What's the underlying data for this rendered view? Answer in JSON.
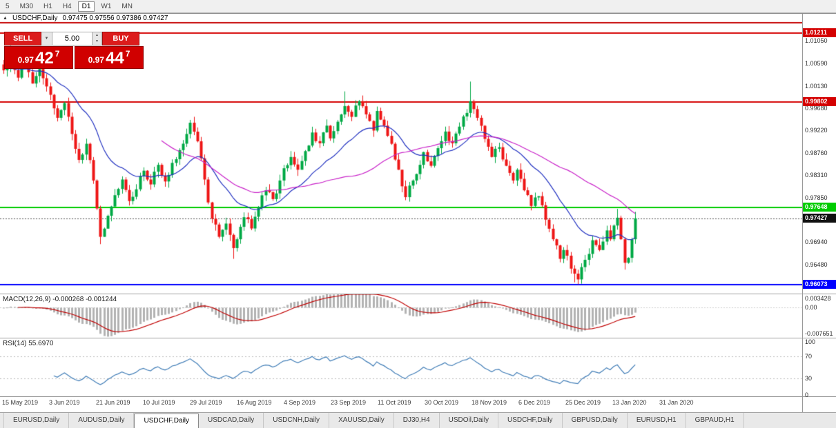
{
  "toolbar": {
    "timeframes": [
      {
        "label": "5",
        "active": false
      },
      {
        "label": "M30",
        "active": false
      },
      {
        "label": "H1",
        "active": false
      },
      {
        "label": "H4",
        "active": false
      },
      {
        "label": "D1",
        "active": true
      },
      {
        "label": "W1",
        "active": false
      },
      {
        "label": "MN",
        "active": false
      }
    ]
  },
  "chart": {
    "title": "USDCHF,Daily",
    "ohlc_line": "0.97475 0.97556 0.97386 0.97427",
    "trade_panel": {
      "sell_label": "SELL",
      "buy_label": "BUY",
      "volume": "5.00",
      "bid": {
        "prefix": "0.97",
        "big": "42",
        "sup": "7"
      },
      "ask": {
        "prefix": "0.97",
        "big": "44",
        "sup": "7"
      }
    },
    "price_axis": {
      "ticks": [
        "1.01050",
        "1.00590",
        "1.00130",
        "0.99680",
        "0.99220",
        "0.98760",
        "0.98310",
        "0.97850",
        "0.96940",
        "0.96480"
      ],
      "levels": [
        {
          "label": "",
          "price": 1.0142,
          "color": "#c40000"
        },
        {
          "label": "1.01211",
          "price": 1.01211,
          "color": "#d40000"
        },
        {
          "label": "0.99802",
          "price": 0.99802,
          "color": "#d40000"
        },
        {
          "label": "0.97648",
          "price": 0.97648,
          "color": "#00cc00"
        },
        {
          "label": "0.96073",
          "price": 0.96073,
          "color": "#0000ff"
        }
      ],
      "current": {
        "label": "0.97427",
        "price": 0.97427,
        "bg": "#111111"
      }
    },
    "time_axis": {
      "labels": [
        "15 May 2019",
        "3 Jun 2019",
        "21 Jun 2019",
        "10 Jul 2019",
        "29 Jul 2019",
        "16 Aug 2019",
        "4 Sep 2019",
        "23 Sep 2019",
        "11 Oct 2019",
        "30 Oct 2019",
        "18 Nov 2019",
        "6 Dec 2019",
        "25 Dec 2019",
        "13 Jan 2020",
        "31 Jan 2020"
      ]
    }
  },
  "indicators": {
    "macd": {
      "label": "MACD(12,26,9) -0.000268 -0.001244",
      "axis": [
        "0.003428",
        "0.00",
        "-0.007651"
      ],
      "range": [
        -0.007651,
        0.003428
      ]
    },
    "rsi": {
      "label": "RSI(14) 55.6970",
      "axis": [
        "100",
        "70",
        "30",
        "0"
      ],
      "levels": [
        70,
        30
      ]
    }
  },
  "tabs": [
    {
      "label": "EURUSD,Daily",
      "active": false
    },
    {
      "label": "AUDUSD,Daily",
      "active": false
    },
    {
      "label": "USDCHF,Daily",
      "active": true
    },
    {
      "label": "USDCAD,Daily",
      "active": false
    },
    {
      "label": "USDCNH,Daily",
      "active": false
    },
    {
      "label": "XAUUSD,Daily",
      "active": false
    },
    {
      "label": "DJ30,H4",
      "active": false
    },
    {
      "label": "USDOil,Daily",
      "active": false
    },
    {
      "label": "USDCHF,Daily",
      "active": false
    },
    {
      "label": "GBPUSD,Daily",
      "active": false
    },
    {
      "label": "EURUSD,H1",
      "active": false
    },
    {
      "label": "GBPAUD,H1",
      "active": false
    }
  ],
  "chart_data": {
    "type": "candlestick",
    "symbol": "USDCHF",
    "timeframe": "Daily",
    "x_axis_labels": [
      "15 May 2019",
      "3 Jun 2019",
      "21 Jun 2019",
      "10 Jul 2019",
      "29 Jul 2019",
      "16 Aug 2019",
      "4 Sep 2019",
      "23 Sep 2019",
      "11 Oct 2019",
      "30 Oct 2019",
      "18 Nov 2019",
      "6 Dec 2019",
      "25 Dec 2019",
      "13 Jan 2020",
      "31 Jan 2020"
    ],
    "visible_price_range": {
      "top": 1.0145,
      "bottom": 0.9589
    },
    "candle_count": 177,
    "candles_per_label": 13,
    "close_anchors": [
      [
        0,
        1.0045
      ],
      [
        2,
        1.0075
      ],
      [
        4,
        1.003
      ],
      [
        6,
        1.0058
      ],
      [
        8,
        1.0018
      ],
      [
        10,
        1.0048
      ],
      [
        13,
        0.9995
      ],
      [
        15,
        0.9948
      ],
      [
        17,
        0.9978
      ],
      [
        19,
        0.9915
      ],
      [
        21,
        0.9862
      ],
      [
        23,
        0.9895
      ],
      [
        25,
        0.982
      ],
      [
        27,
        0.9705
      ],
      [
        29,
        0.9748
      ],
      [
        31,
        0.979
      ],
      [
        33,
        0.9822
      ],
      [
        35,
        0.9778
      ],
      [
        37,
        0.9802
      ],
      [
        39,
        0.984
      ],
      [
        41,
        0.9812
      ],
      [
        43,
        0.9852
      ],
      [
        45,
        0.9818
      ],
      [
        47,
        0.9856
      ],
      [
        49,
        0.9882
      ],
      [
        51,
        0.9915
      ],
      [
        52,
        0.9938
      ],
      [
        54,
        0.99
      ],
      [
        56,
        0.9822
      ],
      [
        58,
        0.9742
      ],
      [
        60,
        0.9705
      ],
      [
        62,
        0.9732
      ],
      [
        64,
        0.9682
      ],
      [
        65,
        0.97
      ],
      [
        67,
        0.9745
      ],
      [
        69,
        0.9722
      ],
      [
        71,
        0.9766
      ],
      [
        73,
        0.98
      ],
      [
        75,
        0.9782
      ],
      [
        77,
        0.982
      ],
      [
        78,
        0.9845
      ],
      [
        80,
        0.9868
      ],
      [
        82,
        0.9842
      ],
      [
        84,
        0.988
      ],
      [
        86,
        0.9918
      ],
      [
        88,
        0.9896
      ],
      [
        90,
        0.9932
      ],
      [
        91,
        0.9906
      ],
      [
        93,
        0.994
      ],
      [
        95,
        0.9972
      ],
      [
        97,
        0.995
      ],
      [
        99,
        0.9982
      ],
      [
        101,
        0.9955
      ],
      [
        103,
        0.9922
      ],
      [
        104,
        0.9962
      ],
      [
        106,
        0.9932
      ],
      [
        108,
        0.9895
      ],
      [
        110,
        0.9842
      ],
      [
        112,
        0.9786
      ],
      [
        114,
        0.982
      ],
      [
        116,
        0.9852
      ],
      [
        117,
        0.9878
      ],
      [
        119,
        0.985
      ],
      [
        121,
        0.9886
      ],
      [
        123,
        0.992
      ],
      [
        125,
        0.9896
      ],
      [
        127,
        0.993
      ],
      [
        129,
        0.9958
      ],
      [
        130,
        0.9982
      ],
      [
        132,
        0.9948
      ],
      [
        134,
        0.9905
      ],
      [
        136,
        0.9868
      ],
      [
        138,
        0.9888
      ],
      [
        140,
        0.985
      ],
      [
        142,
        0.982
      ],
      [
        143,
        0.9842
      ],
      [
        145,
        0.98
      ],
      [
        147,
        0.9768
      ],
      [
        149,
        0.9788
      ],
      [
        151,
        0.974
      ],
      [
        153,
        0.97
      ],
      [
        155,
        0.966
      ],
      [
        156,
        0.9678
      ],
      [
        158,
        0.964
      ],
      [
        160,
        0.9618
      ],
      [
        162,
        0.9658
      ],
      [
        164,
        0.9698
      ],
      [
        166,
        0.9678
      ],
      [
        168,
        0.9718
      ],
      [
        169,
        0.97
      ],
      [
        170,
        0.9728
      ],
      [
        171,
        0.9744
      ],
      [
        172,
        0.97
      ],
      [
        173,
        0.9652
      ],
      [
        174,
        0.9662
      ],
      [
        175,
        0.97
      ],
      [
        176,
        0.97427
      ]
    ],
    "wick_overrides": {
      "high": {
        "2": 1.0095,
        "95": 1.0002,
        "130": 1.0022,
        "171": 0.9762,
        "176": 0.9756
      },
      "low": {
        "27": 0.969,
        "64": 0.966,
        "159": 0.9612,
        "160": 0.9608,
        "173": 0.9638
      }
    },
    "overlays": [
      {
        "name": "ma-fast",
        "type": "ema",
        "period": 20
      },
      {
        "name": "ma-slow",
        "type": "sma",
        "period": 45
      }
    ],
    "indicator_panes": [
      {
        "name": "macd",
        "params": [
          12,
          26,
          9
        ],
        "last_values": [
          -0.000268,
          -0.001244
        ],
        "scale": [
          -0.007651,
          0.003428
        ]
      },
      {
        "name": "rsi",
        "params": [
          14
        ],
        "last_value": 55.697,
        "scale": [
          0,
          100
        ],
        "level_lines": [
          70,
          30
        ]
      }
    ],
    "colors": {
      "up": "#00a845",
      "down": "#ee1515",
      "ma_fast": "#2030c0",
      "ma_slow": "#c820c8",
      "macd_hist": "#b2b2b2",
      "macd_signal": "#c00000",
      "rsi_line": "#3f7cb6",
      "level_red": "#d40000",
      "level_green": "#00cc00",
      "level_blue": "#0000ff",
      "quote_red": "#d00000"
    }
  }
}
